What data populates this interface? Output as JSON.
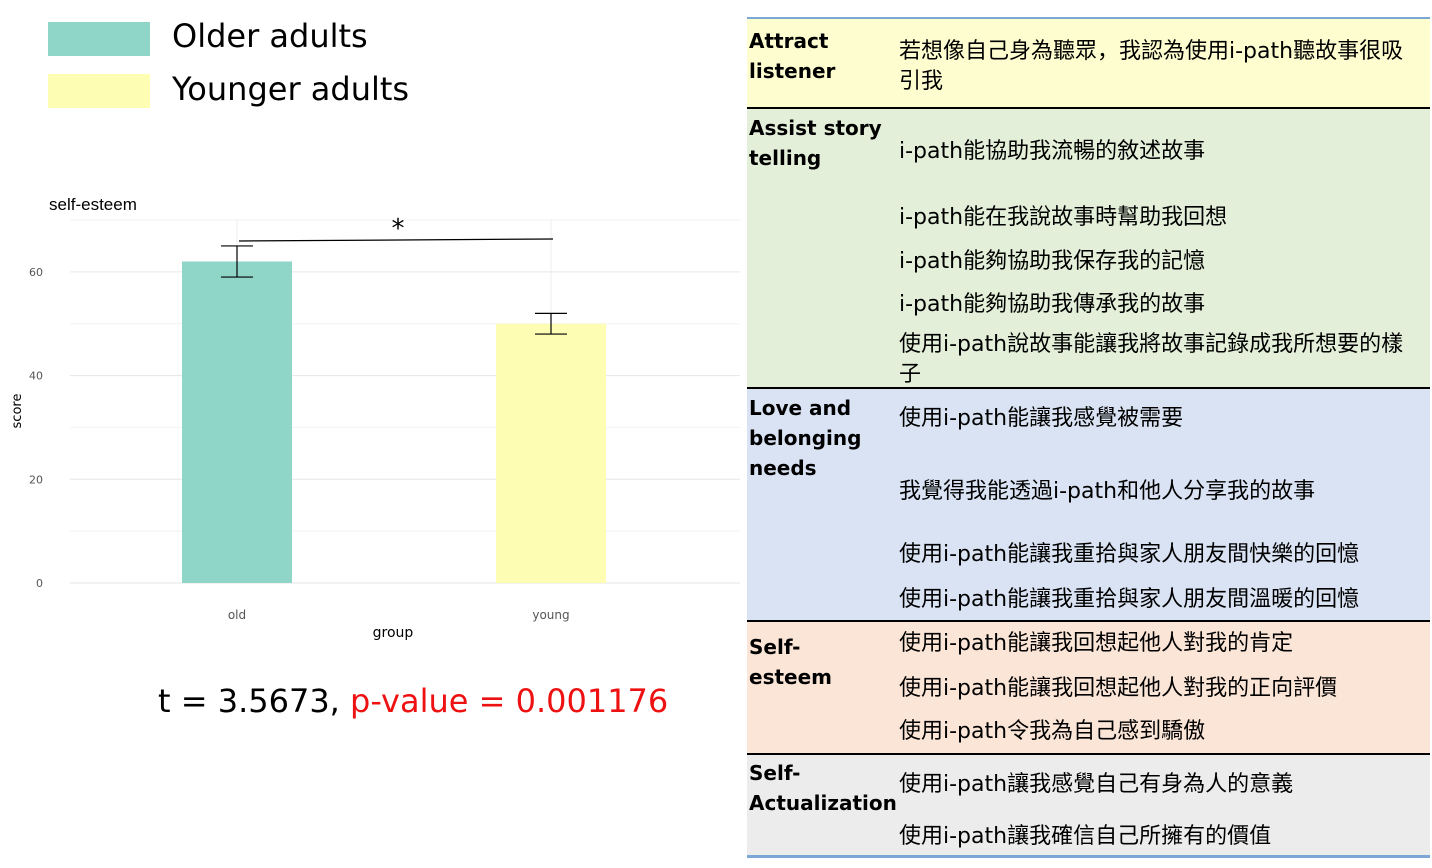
{
  "legend": {
    "items": [
      {
        "label": "Older adults",
        "color": "#8fd5c8"
      },
      {
        "label": "Younger adults",
        "color": "#fdfdb3"
      }
    ]
  },
  "chart_data": {
    "type": "bar",
    "title": "self-esteem",
    "xlabel": "group",
    "ylabel": "score",
    "categories": [
      "old",
      "young"
    ],
    "values": [
      62,
      50
    ],
    "error": [
      [
        59,
        65
      ],
      [
        48,
        52
      ]
    ],
    "colors": [
      "#8fd5c8",
      "#fdfdb3"
    ],
    "ylim": [
      0,
      70
    ],
    "yticks": [
      0,
      20,
      40,
      60
    ],
    "significance": "*",
    "grid": true
  },
  "stats": {
    "t_text": "t = 3.5673,",
    "p_text": "p-value = 0.001176"
  },
  "table": {
    "rows": [
      {
        "category": "Attract listener",
        "color": "#fdfdcf",
        "items": [
          "若想像自己身為聽眾，我認為使用i-path聽故事很吸引我"
        ]
      },
      {
        "category": "Assist story telling",
        "color": "#e3efd9",
        "items": [
          "i-path能協助我流暢的敘述故事",
          "i-path能在我說故事時幫助我回想",
          "i-path能夠協助我保存我的記憶",
          "i-path能夠協助我傳承我的故事",
          "使用i-path說故事能讓我將故事記錄成我所想要的樣子"
        ]
      },
      {
        "category": "Love and belonging needs",
        "color": "#d9e3f3",
        "items": [
          "使用i-path能讓我感覺被需要",
          "我覺得我能透過i-path和他人分享我的故事",
          "使用i-path能讓我重拾與家人朋友間快樂的回憶",
          "使用i-path能讓我重拾與家人朋友間溫暖的回憶"
        ]
      },
      {
        "category": "Self- esteem",
        "color": "#fbe5d7",
        "items": [
          "使用i-path能讓我回想起他人對我的肯定",
          "使用i-path能讓我回想起他人對我的正向評價",
          "使用i-path令我為自己感到驕傲"
        ]
      },
      {
        "category": "Self- Actualization",
        "color": "#ececec",
        "items": [
          "使用i-path讓我感覺自己有身為人的意義",
          "使用i-path讓我確信自己所擁有的價值"
        ]
      }
    ]
  }
}
